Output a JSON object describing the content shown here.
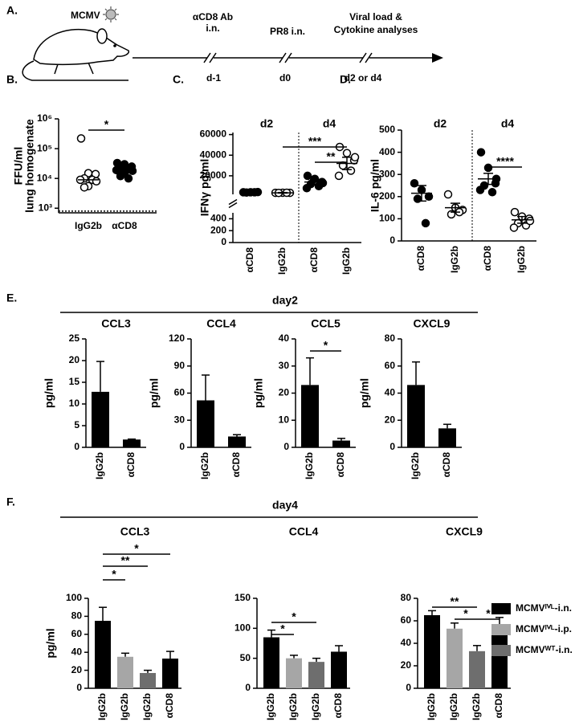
{
  "panel_a": {
    "label": "A.",
    "virus": "MCMV",
    "steps": [
      {
        "text": [
          "αCD8 Ab",
          "i.n."
        ],
        "day": "d-1"
      },
      {
        "text": [
          "PR8 i.n."
        ],
        "day": "d0"
      },
      {
        "text": [
          "Viral load &",
          "Cytokine analyses"
        ],
        "day": "d2 or d4"
      }
    ]
  },
  "panel_e": {
    "label": "E.",
    "title": "day2"
  },
  "panel_f": {
    "label": "F.",
    "title": "day4",
    "legend": [
      {
        "name": "MCMVᴵⱽᴸ-i.n.",
        "color": "#000000"
      },
      {
        "name": "MCMVᴵⱽᴸ-i.p.",
        "color": "#a6a6a6"
      },
      {
        "name": "MCMVᵂᵀ-i.n.",
        "color": "#6e6e6e"
      }
    ]
  },
  "chart_data": [
    {
      "type": "dot",
      "label": "B.",
      "ylabel": [
        "FFU/ml",
        "lung homogenate"
      ],
      "log": true,
      "ylim": [
        700,
        1000000
      ],
      "yticks": [
        {
          "value": 1000,
          "label": "10³"
        },
        {
          "value": 10000,
          "label": "10⁴"
        },
        {
          "value": 100000,
          "label": "10⁵"
        },
        {
          "value": 1000000,
          "label": "10⁶"
        }
      ],
      "categories": [
        "IgG2b",
        "αCD8"
      ],
      "points": [
        [
          220000,
          15000,
          14000,
          10000,
          9000,
          9000,
          8000,
          5500,
          5000
        ],
        [
          33000,
          30000,
          25000,
          22000,
          20000,
          19000,
          18000,
          15000,
          12000,
          10000
        ]
      ],
      "filled": [
        false,
        true
      ],
      "center": [
        9000,
        20000
      ],
      "detection_limit": 800,
      "annotations": [
        {
          "text": "*",
          "from": 0,
          "to": 1
        }
      ]
    },
    {
      "type": "dot",
      "label": "C.",
      "ylabel": "IFNγ pg/ml",
      "groups": [
        "d2",
        "d4"
      ],
      "segments": [
        {
          "ylim": [
            0,
            500
          ],
          "yticks": [
            0,
            200,
            400
          ]
        },
        {
          "ylim": [
            2000,
            62000
          ],
          "yticks": [
            20000,
            40000,
            60000
          ]
        }
      ],
      "categories": [
        "αCD8",
        "IgG2b",
        "αCD8",
        "IgG2b"
      ],
      "points": [
        [
          4000,
          4000,
          4200,
          3800,
          4000
        ],
        [
          3500,
          3600,
          3500,
          3400,
          3600
        ],
        [
          20000,
          17000,
          14000,
          12000,
          10000,
          8000,
          13000
        ],
        [
          48000,
          42000,
          35000,
          30000,
          25000,
          20000,
          38000
        ]
      ],
      "filled": [
        true,
        false,
        true,
        false
      ],
      "center": [
        4000,
        3500,
        14000,
        32000
      ],
      "error": [
        300,
        300,
        2500,
        6000
      ],
      "annotations": [
        {
          "text": "***",
          "from": 1,
          "to": 3
        },
        {
          "text": "**",
          "from": 2,
          "to": 3
        }
      ]
    },
    {
      "type": "dot",
      "label": "D.",
      "ylabel": "IL-6 pg/ml",
      "groups": [
        "d2",
        "d4"
      ],
      "ylim": [
        0,
        500
      ],
      "yticks": [
        0,
        100,
        200,
        300,
        400,
        500
      ],
      "categories": [
        "αCD8",
        "IgG2b",
        "αCD8",
        "IgG2b"
      ],
      "points": [
        [
          260,
          230,
          200,
          190,
          80
        ],
        [
          210,
          150,
          140,
          120,
          130
        ],
        [
          400,
          330,
          260,
          250,
          220,
          230,
          280
        ],
        [
          130,
          110,
          100,
          80,
          70,
          60,
          90
        ]
      ],
      "filled": [
        true,
        false,
        true,
        false
      ],
      "center": [
        215,
        150,
        280,
        95
      ],
      "error": [
        35,
        20,
        25,
        15
      ],
      "annotations": [
        {
          "text": "****",
          "from": 2,
          "to": 3
        }
      ]
    },
    {
      "type": "bar",
      "title": "CCL3",
      "ylabel": "pg/ml",
      "ylim": [
        0,
        25
      ],
      "yticks": [
        0,
        5,
        10,
        15,
        20,
        25
      ],
      "categories": [
        "IgG2b",
        "αCD8"
      ],
      "values": [
        12.8,
        1.8
      ],
      "errors": [
        7,
        0.1
      ],
      "color": "#000000"
    },
    {
      "type": "bar",
      "title": "CCL4",
      "ylabel": "pg/ml",
      "ylim": [
        0,
        120
      ],
      "yticks": [
        0,
        30,
        60,
        90,
        120
      ],
      "categories": [
        "IgG2b",
        "αCD8"
      ],
      "values": [
        52,
        12
      ],
      "errors": [
        28,
        2
      ],
      "color": "#000000"
    },
    {
      "type": "bar",
      "title": "CCL5",
      "ylabel": "pg/ml",
      "ylim": [
        0,
        40
      ],
      "yticks": [
        0,
        10,
        20,
        30,
        40
      ],
      "categories": [
        "IgG2b",
        "αCD8"
      ],
      "values": [
        23,
        2.5
      ],
      "errors": [
        10,
        0.8
      ],
      "color": "#000000",
      "annotations": [
        {
          "text": "*",
          "from": 0,
          "to": 1
        }
      ]
    },
    {
      "type": "bar",
      "title": "CXCL9",
      "ylabel": "pg/ml",
      "ylim": [
        0,
        80
      ],
      "yticks": [
        0,
        20,
        40,
        60,
        80
      ],
      "categories": [
        "IgG2b",
        "αCD8"
      ],
      "values": [
        46,
        14
      ],
      "errors": [
        17,
        3
      ],
      "color": "#000000"
    },
    {
      "type": "bar",
      "title": "CCL3",
      "ylabel": "pg/ml",
      "ylim": [
        0,
        100
      ],
      "yticks": [
        0,
        20,
        40,
        60,
        80,
        100
      ],
      "categories": [
        "IgG2b",
        "IgG2b",
        "IgG2b",
        "αCD8"
      ],
      "values": [
        75,
        35,
        17,
        33
      ],
      "errors": [
        15,
        4,
        3,
        8
      ],
      "colors": [
        "#000000",
        "#a6a6a6",
        "#6e6e6e",
        "#000000"
      ],
      "annotations": [
        {
          "text": "*",
          "from": 0,
          "to": 1
        },
        {
          "text": "**",
          "from": 0,
          "to": 2
        },
        {
          "text": "*",
          "from": 0,
          "to": 3
        }
      ]
    },
    {
      "type": "bar",
      "title": "CCL4",
      "ylim": [
        0,
        150
      ],
      "yticks": [
        0,
        50,
        100,
        150
      ],
      "categories": [
        "IgG2b",
        "IgG2b",
        "IgG2b",
        "αCD8"
      ],
      "values": [
        85,
        50,
        44,
        61
      ],
      "errors": [
        12,
        5,
        6,
        10
      ],
      "colors": [
        "#000000",
        "#a6a6a6",
        "#6e6e6e",
        "#000000"
      ],
      "annotations": [
        {
          "text": "*",
          "from": 0,
          "to": 1
        },
        {
          "text": "*",
          "from": 0,
          "to": 2
        }
      ]
    },
    {
      "type": "bar",
      "title": "CXCL9",
      "ylim": [
        0,
        80
      ],
      "yticks": [
        0,
        20,
        40,
        60,
        80
      ],
      "categories": [
        "IgG2b",
        "IgG2b",
        "IgG2b",
        "αCD8"
      ],
      "values": [
        65,
        53,
        33,
        57
      ],
      "errors": [
        4,
        5,
        5,
        6
      ],
      "colors": [
        "#000000",
        "#a6a6a6",
        "#6e6e6e",
        "#000000"
      ],
      "annotations": [
        {
          "text": "**",
          "from": 0,
          "to": 2
        },
        {
          "text": "*",
          "from": 1,
          "to": 2
        },
        {
          "text": "*",
          "from": 2,
          "to": 3
        }
      ]
    }
  ]
}
